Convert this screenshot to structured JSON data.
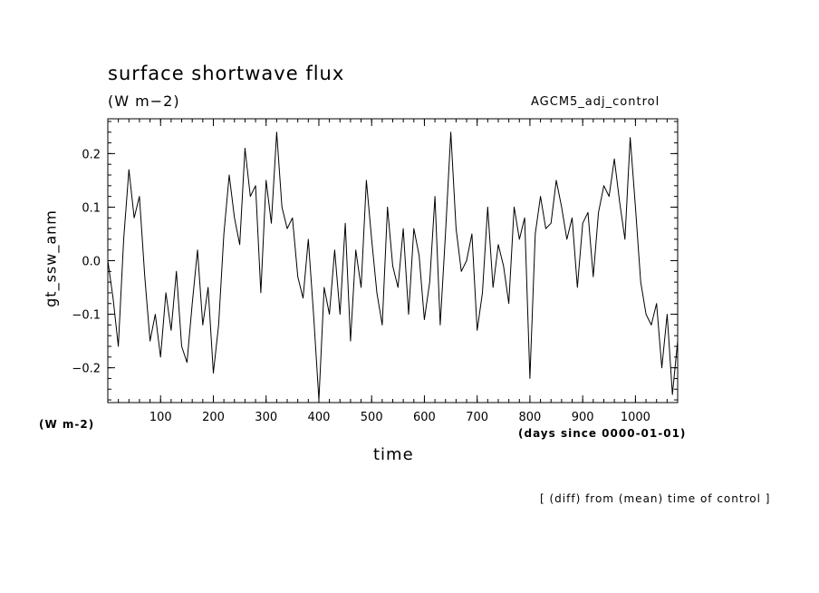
{
  "header": {
    "title": "surface shortwave flux",
    "units_top": "(W m−2)",
    "run_name": "AGCM5_adj_control"
  },
  "axes": {
    "xlabel": "time",
    "ylabel": "gt_ssw_anm",
    "units_bottom": "(W m-2)",
    "time_units": "(days since 0000-01-01)"
  },
  "footer": {
    "note": "[ (diff) from (mean) time of control ]"
  },
  "chart_data": {
    "type": "line",
    "title": "surface shortwave flux",
    "xlabel": "time",
    "ylabel": "gt_ssw_anm",
    "xlim": [
      0,
      1080
    ],
    "ylim": [
      -0.265,
      0.265
    ],
    "x_ticks": [
      100,
      200,
      300,
      400,
      500,
      600,
      700,
      800,
      900,
      1000
    ],
    "y_ticks": [
      -0.2,
      -0.1,
      0.0,
      0.1,
      0.2
    ],
    "x_tick_labels": [
      "100",
      "200",
      "300",
      "400",
      "500",
      "600",
      "700",
      "800",
      "900",
      "1000"
    ],
    "y_tick_labels": [
      "−0.2",
      "−0.1",
      "0.0",
      "0.1",
      "0.2"
    ],
    "grid": false,
    "line_color": "#000000",
    "series": [
      {
        "x": [
          0,
          10,
          20,
          30,
          40,
          50,
          60,
          70,
          80,
          90,
          100,
          110,
          120,
          130,
          140,
          150,
          160,
          170,
          180,
          190,
          200,
          210,
          220,
          230,
          240,
          250,
          260,
          270,
          280,
          290,
          300,
          310,
          320,
          330,
          340,
          350,
          360,
          370,
          380,
          390,
          400,
          410,
          420,
          430,
          440,
          450,
          460,
          470,
          480,
          490,
          500,
          510,
          520,
          530,
          540,
          550,
          560,
          570,
          580,
          590,
          600,
          610,
          620,
          630,
          640,
          650,
          660,
          670,
          680,
          690,
          700,
          710,
          720,
          730,
          740,
          750,
          760,
          770,
          780,
          790,
          800,
          810,
          820,
          830,
          840,
          850,
          860,
          870,
          880,
          890,
          900,
          910,
          920,
          930,
          940,
          950,
          960,
          970,
          980,
          990,
          1000,
          1010,
          1020,
          1030,
          1040,
          1050,
          1060,
          1070,
          1080
        ],
        "values": [
          0.0,
          -0.07,
          -0.16,
          0.04,
          0.17,
          0.08,
          0.12,
          -0.03,
          -0.15,
          -0.1,
          -0.18,
          -0.06,
          -0.13,
          -0.02,
          -0.16,
          -0.19,
          -0.08,
          0.02,
          -0.12,
          -0.05,
          -0.21,
          -0.12,
          0.05,
          0.16,
          0.08,
          0.03,
          0.21,
          0.12,
          0.14,
          -0.06,
          0.15,
          0.07,
          0.24,
          0.1,
          0.06,
          0.08,
          -0.03,
          -0.07,
          0.04,
          -0.1,
          -0.26,
          -0.05,
          -0.1,
          0.02,
          -0.1,
          0.07,
          -0.15,
          0.02,
          -0.05,
          0.15,
          0.04,
          -0.06,
          -0.12,
          0.1,
          -0.01,
          -0.05,
          0.06,
          -0.1,
          0.06,
          0.01,
          -0.11,
          -0.04,
          0.12,
          -0.12,
          0.05,
          0.24,
          0.06,
          -0.02,
          0.0,
          0.05,
          -0.13,
          -0.06,
          0.1,
          -0.05,
          0.03,
          -0.01,
          -0.08,
          0.1,
          0.04,
          0.08,
          -0.22,
          0.05,
          0.12,
          0.06,
          0.07,
          0.15,
          0.1,
          0.04,
          0.08,
          -0.05,
          0.07,
          0.09,
          -0.03,
          0.09,
          0.14,
          0.12,
          0.19,
          0.11,
          0.04,
          0.23,
          0.1,
          -0.04,
          -0.1,
          -0.12,
          -0.08,
          -0.2,
          -0.1,
          -0.25,
          -0.15
        ]
      }
    ]
  }
}
